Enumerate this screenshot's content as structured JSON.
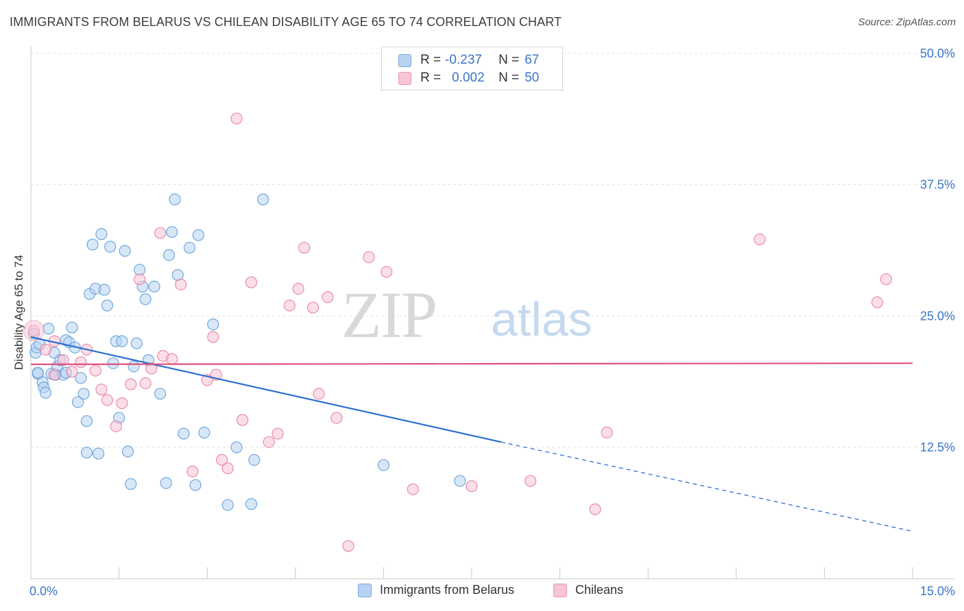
{
  "title": "IMMIGRANTS FROM BELARUS VS CHILEAN DISABILITY AGE 65 TO 74 CORRELATION CHART",
  "source": "Source: ZipAtlas.com",
  "watermark": {
    "part1": "ZIP",
    "part2": "atlas"
  },
  "legend": {
    "r_label": "R =",
    "n_label": "N =",
    "rows": [
      {
        "r": "-0.237",
        "n": "67",
        "color": "#a9c8f0"
      },
      {
        "r": "0.002",
        "n": "50",
        "color": "#f6b8cc"
      }
    ]
  },
  "chart_data": {
    "type": "scatter",
    "title": "IMMIGRANTS FROM BELARUS VS CHILEAN DISABILITY AGE 65 TO 74 CORRELATION CHART",
    "xlabel": "",
    "ylabel": "Disability Age 65 to 74",
    "xlim": [
      0,
      15
    ],
    "ylim": [
      0,
      52
    ],
    "x_tick_labels": [
      "0.0%",
      "15.0%"
    ],
    "y_ticks": [
      12.5,
      25.0,
      37.5,
      50.0
    ],
    "y_tick_labels": [
      "12.5%",
      "25.0%",
      "37.5%",
      "50.0%"
    ],
    "grid": true,
    "series": [
      {
        "name": "Immigrants from Belarus",
        "color": "#5b9bd5",
        "fill": "#b8d3f2",
        "trend": {
          "x": [
            0.0,
            8.0
          ],
          "y": [
            23.0,
            13.0
          ],
          "dashed_to": [
            15.0,
            4.5
          ],
          "color": "#2b6fd0"
        },
        "points": [
          [
            0.05,
            23.3
          ],
          [
            0.08,
            21.5
          ],
          [
            0.1,
            22.0
          ],
          [
            0.12,
            19.5
          ],
          [
            0.15,
            22.3
          ],
          [
            0.2,
            18.7
          ],
          [
            0.22,
            18.2
          ],
          [
            0.25,
            17.7
          ],
          [
            0.3,
            23.8
          ],
          [
            0.35,
            19.5
          ],
          [
            0.4,
            21.5
          ],
          [
            0.42,
            19.4
          ],
          [
            0.45,
            20.2
          ],
          [
            0.5,
            20.8
          ],
          [
            0.55,
            19.4
          ],
          [
            0.6,
            22.7
          ],
          [
            0.65,
            22.5
          ],
          [
            0.7,
            23.9
          ],
          [
            0.75,
            22.0
          ],
          [
            0.8,
            16.8
          ],
          [
            0.85,
            19.1
          ],
          [
            0.9,
            17.6
          ],
          [
            0.95,
            15.0
          ],
          [
            1.0,
            27.1
          ],
          [
            1.05,
            31.8
          ],
          [
            1.1,
            27.6
          ],
          [
            1.15,
            11.9
          ],
          [
            1.2,
            32.8
          ],
          [
            1.25,
            27.5
          ],
          [
            1.3,
            26.0
          ],
          [
            1.35,
            31.6
          ],
          [
            1.4,
            20.5
          ],
          [
            1.45,
            22.6
          ],
          [
            1.5,
            15.3
          ],
          [
            1.55,
            22.6
          ],
          [
            1.6,
            31.2
          ],
          [
            1.65,
            12.1
          ],
          [
            1.7,
            9.0
          ],
          [
            1.75,
            20.2
          ],
          [
            1.8,
            22.4
          ],
          [
            1.85,
            29.4
          ],
          [
            1.9,
            27.8
          ],
          [
            1.95,
            26.6
          ],
          [
            2.0,
            20.8
          ],
          [
            2.1,
            27.8
          ],
          [
            2.2,
            17.6
          ],
          [
            2.3,
            9.1
          ],
          [
            2.35,
            30.8
          ],
          [
            2.4,
            33.0
          ],
          [
            2.5,
            28.9
          ],
          [
            2.45,
            36.1
          ],
          [
            2.6,
            13.8
          ],
          [
            2.7,
            31.5
          ],
          [
            2.8,
            8.9
          ],
          [
            2.85,
            32.7
          ],
          [
            2.95,
            13.9
          ],
          [
            3.1,
            24.2
          ],
          [
            3.35,
            7.0
          ],
          [
            3.5,
            12.5
          ],
          [
            3.75,
            7.1
          ],
          [
            3.8,
            11.3
          ],
          [
            3.95,
            36.1
          ],
          [
            6.0,
            10.8
          ],
          [
            7.3,
            9.3
          ],
          [
            0.12,
            19.6
          ],
          [
            0.6,
            19.6
          ],
          [
            0.95,
            12.0
          ]
        ]
      },
      {
        "name": "Chileans",
        "color": "#e8789e",
        "fill": "#f7c5d5",
        "trend": {
          "x": [
            0.0,
            15.0
          ],
          "y": [
            20.4,
            20.5
          ],
          "color": "#e0527e"
        },
        "points": [
          [
            0.05,
            23.6
          ],
          [
            0.25,
            21.8
          ],
          [
            0.4,
            22.6
          ],
          [
            0.55,
            20.8
          ],
          [
            0.7,
            19.7
          ],
          [
            0.85,
            20.6
          ],
          [
            0.95,
            21.8
          ],
          [
            1.1,
            19.8
          ],
          [
            1.2,
            18.0
          ],
          [
            1.3,
            17.0
          ],
          [
            1.45,
            14.5
          ],
          [
            1.55,
            16.7
          ],
          [
            1.7,
            18.5
          ],
          [
            1.85,
            28.5
          ],
          [
            1.95,
            18.6
          ],
          [
            2.05,
            20.0
          ],
          [
            2.2,
            32.9
          ],
          [
            2.25,
            21.2
          ],
          [
            2.4,
            20.9
          ],
          [
            2.55,
            28.0
          ],
          [
            2.75,
            10.2
          ],
          [
            3.0,
            18.9
          ],
          [
            3.1,
            23.0
          ],
          [
            3.15,
            19.4
          ],
          [
            3.25,
            11.3
          ],
          [
            3.35,
            10.5
          ],
          [
            3.6,
            15.1
          ],
          [
            3.75,
            28.2
          ],
          [
            4.05,
            13.0
          ],
          [
            4.2,
            13.8
          ],
          [
            4.4,
            26.0
          ],
          [
            4.55,
            27.6
          ],
          [
            4.65,
            31.5
          ],
          [
            4.8,
            25.8
          ],
          [
            4.9,
            17.6
          ],
          [
            5.05,
            26.8
          ],
          [
            5.2,
            15.3
          ],
          [
            5.4,
            3.1
          ],
          [
            5.75,
            30.6
          ],
          [
            6.05,
            29.2
          ],
          [
            6.5,
            8.5
          ],
          [
            7.5,
            8.8
          ],
          [
            8.5,
            9.3
          ],
          [
            9.6,
            6.6
          ],
          [
            9.8,
            13.9
          ],
          [
            12.4,
            32.3
          ],
          [
            14.4,
            26.3
          ],
          [
            14.55,
            28.5
          ],
          [
            3.5,
            43.8
          ],
          [
            0.4,
            19.4
          ]
        ]
      }
    ]
  }
}
